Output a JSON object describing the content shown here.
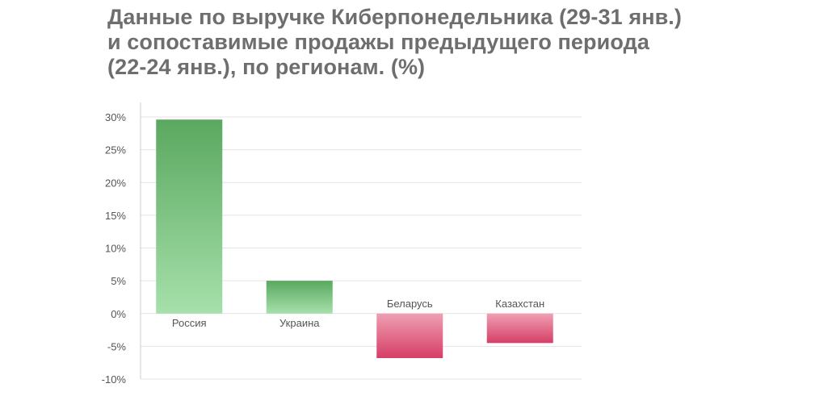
{
  "chart_data": {
    "type": "bar",
    "title_lines": [
      "Данные по выручке Киберпонедельника (29-31 янв.)",
      "и сопоставимые продажы предыдущего периода",
      "(22-24 янв.), по регионам. (%)"
    ],
    "categories": [
      "Россия",
      "Украина",
      "Беларусь",
      "Казахстан"
    ],
    "values": [
      29.6,
      5.0,
      -6.8,
      -4.5
    ],
    "ylim": [
      -10,
      30
    ],
    "yticks": [
      30,
      25,
      20,
      15,
      10,
      5,
      0,
      -5,
      -10
    ],
    "ytick_labels": [
      "30%",
      "25%",
      "20%",
      "15%",
      "10%",
      "5%",
      "0%",
      "-5%",
      "-10%"
    ],
    "grid": true,
    "legend": "none",
    "colors": {
      "positive_top": "#5aa85f",
      "positive_bottom": "#a6e0ab",
      "negative_top": "#ef9fb3",
      "negative_bottom": "#d63e66",
      "grid": "#e3e3e3",
      "axis": "#cccccc"
    }
  }
}
